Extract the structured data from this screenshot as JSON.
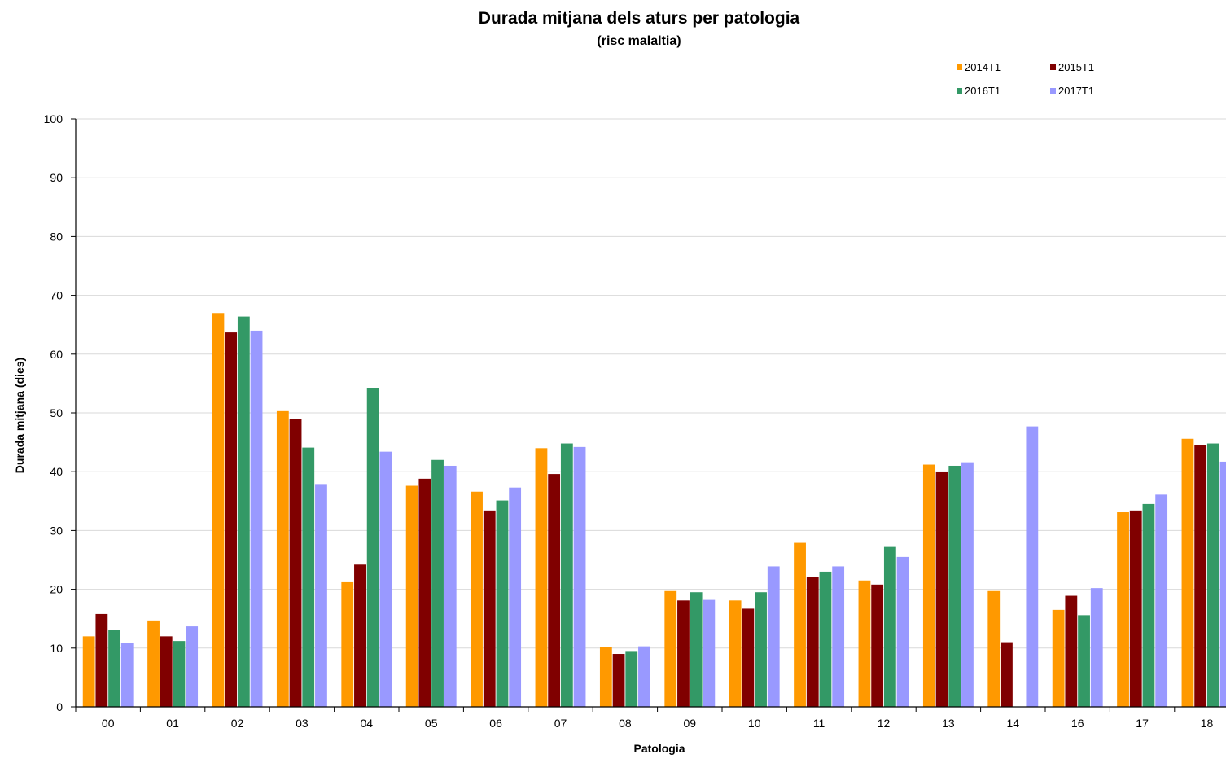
{
  "chart_data": {
    "type": "bar",
    "title": "Durada mitjana dels aturs per patologia",
    "subtitle": "(risc malaltia)",
    "xlabel": "Patologia",
    "ylabel": "Durada mitjana (dies)",
    "ylim": [
      0,
      100
    ],
    "yticks": [
      0,
      10,
      20,
      30,
      40,
      50,
      60,
      70,
      80,
      90,
      100
    ],
    "grid": true,
    "legend_position": "top-right",
    "categories": [
      "00",
      "01",
      "02",
      "03",
      "04",
      "05",
      "06",
      "07",
      "08",
      "09",
      "10",
      "11",
      "12",
      "13",
      "14",
      "16",
      "17",
      "18"
    ],
    "series": [
      {
        "name": "2014T1",
        "color": "#ff9900",
        "values": [
          12,
          14.7,
          67,
          50.3,
          21.2,
          37.6,
          36.6,
          44,
          10.2,
          19.7,
          18.1,
          27.9,
          21.5,
          41.2,
          19.7,
          16.5,
          33.1,
          45.6
        ]
      },
      {
        "name": "2015T1",
        "color": "#800000",
        "values": [
          15.8,
          12,
          63.7,
          49,
          24.2,
          38.8,
          33.4,
          39.6,
          9,
          18.1,
          16.7,
          22.1,
          20.8,
          40,
          11,
          18.9,
          33.4,
          44.5
        ]
      },
      {
        "name": "2016T1",
        "color": "#339966",
        "values": [
          13.1,
          11.2,
          66.4,
          44.1,
          54.2,
          42,
          35.1,
          44.8,
          9.5,
          19.5,
          19.5,
          23,
          27.2,
          41,
          null,
          15.6,
          34.5,
          44.8
        ]
      },
      {
        "name": "2017T1",
        "color": "#9999ff",
        "values": [
          10.9,
          13.7,
          64,
          37.9,
          43.4,
          41,
          37.3,
          44.2,
          10.3,
          18.2,
          23.9,
          23.9,
          25.5,
          41.6,
          47.7,
          20.2,
          36.1,
          41.7
        ]
      }
    ]
  }
}
